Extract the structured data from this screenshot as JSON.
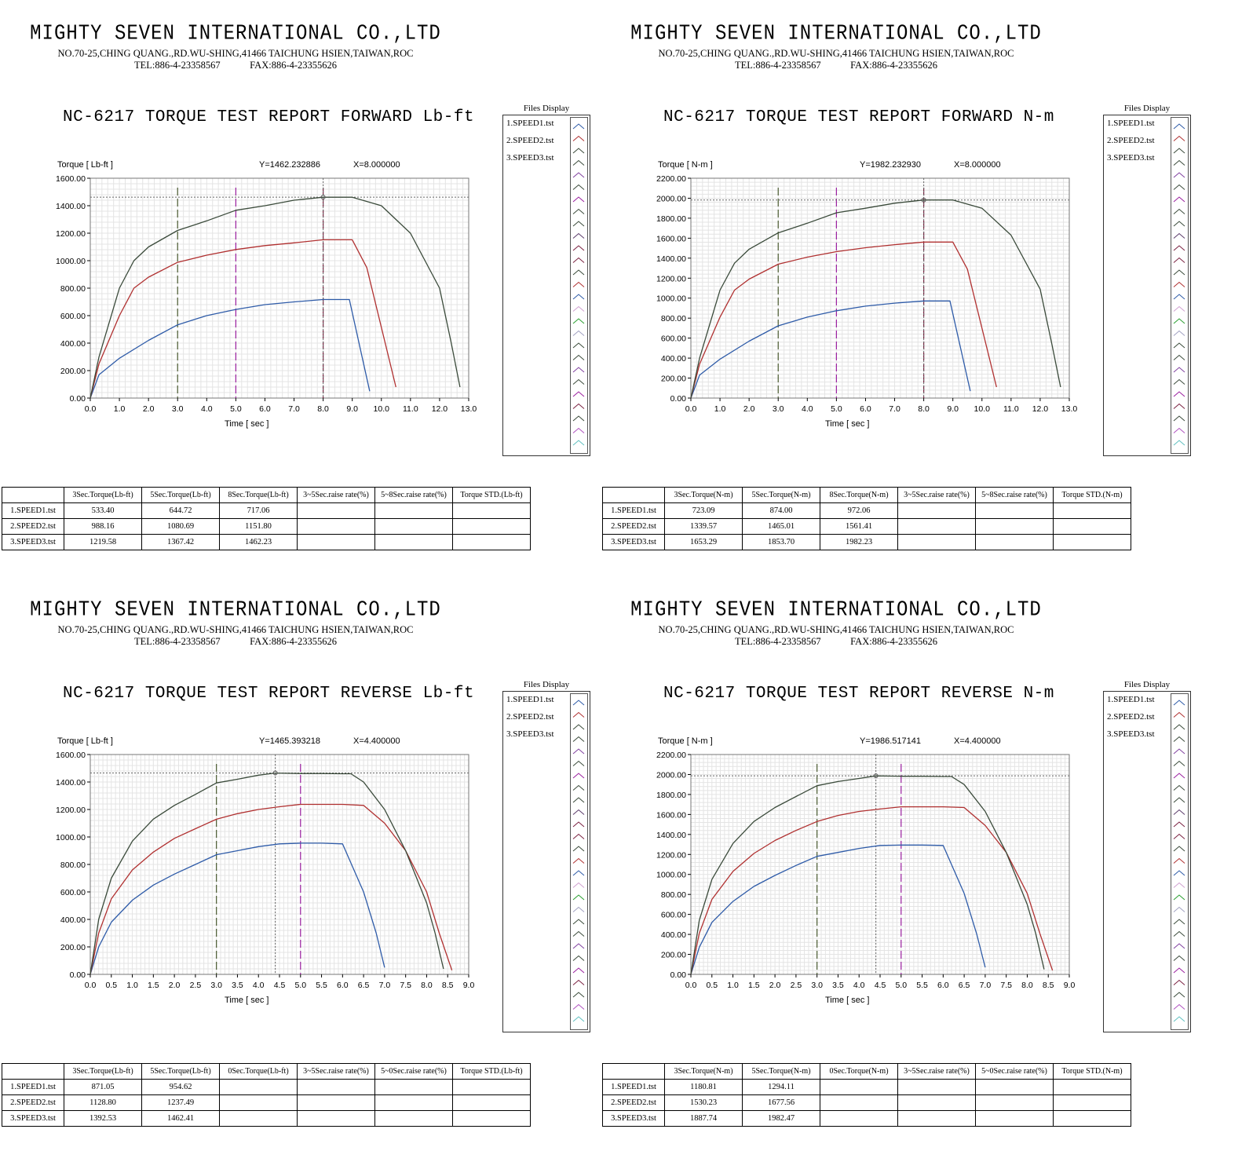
{
  "company": {
    "name": "MIGHTY SEVEN INTERNATIONAL CO.,LTD",
    "address": "NO.70-25,CHING QUANG.,RD.WU-SHING,41466 TAICHUNG HSIEN,TAIWAN,ROC",
    "tel": "TEL:886-4-23358567",
    "fax": "FAX:886-4-23355626"
  },
  "files_display": {
    "title": "Files Display",
    "items": [
      "1.SPEED1.tst",
      "2.SPEED2.tst",
      "3.SPEED3.tst"
    ]
  },
  "row_labels": [
    "1.SPEED1.tst",
    "2.SPEED2.tst",
    "3.SPEED3.tst"
  ],
  "colors": {
    "speed1": "#2e5ba8",
    "speed2": "#b03030",
    "speed3": "#3a4a3a",
    "marker3": "#4a5a30",
    "marker5": "#9b1fa0",
    "marker8": "#7a2040"
  },
  "reports": [
    {
      "title": "NC-6217 TORQUE TEST REPORT FORWARD Lb-ft",
      "table": {
        "headers": [
          "3Sec.Torque(Lb-ft)",
          "5Sec.Torque(Lb-ft)",
          "8Sec.Torque(Lb-ft)",
          "3~5Sec.raise rate(%)",
          "5~8Sec.raise rate(%)",
          "Torque STD.(Lb-ft)"
        ],
        "rows": [
          [
            "533.40",
            "644.72",
            "717.06",
            "",
            "",
            ""
          ],
          [
            "988.16",
            "1080.69",
            "1151.80",
            "",
            "",
            ""
          ],
          [
            "1219.58",
            "1367.42",
            "1462.23",
            "",
            "",
            ""
          ]
        ]
      },
      "chart_data": {
        "type": "line",
        "ylabel": "Torque [ Lb-ft ]",
        "xlabel": "Time [ sec ]",
        "cursor_text": {
          "y": "Y=1462.232886",
          "x": "X=8.000000"
        },
        "xlim": [
          0,
          13
        ],
        "ylim": [
          0,
          1600
        ],
        "xticks": [
          "0.0",
          "1.0",
          "2.0",
          "3.0",
          "4.0",
          "5.0",
          "6.0",
          "7.0",
          "8.0",
          "9.0",
          "10.0",
          "11.0",
          "12.0",
          "13.0"
        ],
        "yticks": [
          "0.00",
          "200.00",
          "400.00",
          "600.00",
          "800.00",
          "1000.00",
          "1200.00",
          "1400.00",
          "1600.00"
        ],
        "markers": [
          3,
          5,
          8
        ],
        "cursor": [
          8,
          1462.23
        ],
        "series": [
          {
            "name": "1.SPEED1.tst",
            "x": [
              0,
              0.3,
              1,
              2,
              3,
              4,
              5,
              6,
              7,
              8,
              8.9,
              9.6
            ],
            "y": [
              0,
              170,
              290,
              420,
              533,
              600,
              645,
              680,
              700,
              717,
              717,
              50
            ]
          },
          {
            "name": "2.SPEED2.tst",
            "x": [
              0,
              0.3,
              1,
              1.5,
              2,
              3,
              4,
              5,
              6,
              7,
              8,
              9,
              9.5,
              10.5
            ],
            "y": [
              0,
              250,
              600,
              800,
              880,
              988,
              1040,
              1081,
              1110,
              1130,
              1152,
              1152,
              950,
              80
            ]
          },
          {
            "name": "3.SPEED3.tst",
            "x": [
              0,
              0.3,
              1,
              1.5,
              2,
              3,
              4,
              5,
              6,
              7,
              8,
              9,
              10,
              11,
              12,
              12.4,
              12.7
            ],
            "y": [
              0,
              300,
              800,
              1000,
              1100,
              1220,
              1290,
              1367,
              1400,
              1440,
              1462,
              1462,
              1400,
              1200,
              800,
              400,
              80
            ]
          }
        ]
      }
    },
    {
      "title": "NC-6217 TORQUE TEST REPORT FORWARD N-m",
      "table": {
        "headers": [
          "3Sec.Torque(N-m)",
          "5Sec.Torque(N-m)",
          "8Sec.Torque(N-m)",
          "3~5Sec.raise rate(%)",
          "5~8Sec.raise rate(%)",
          "Torque STD.(N-m)"
        ],
        "rows": [
          [
            "723.09",
            "874.00",
            "972.06",
            "",
            "",
            ""
          ],
          [
            "1339.57",
            "1465.01",
            "1561.41",
            "",
            "",
            ""
          ],
          [
            "1653.29",
            "1853.70",
            "1982.23",
            "",
            "",
            ""
          ]
        ]
      },
      "chart_data": {
        "type": "line",
        "ylabel": "Torque [ N-m ]",
        "xlabel": "Time [ sec ]",
        "cursor_text": {
          "y": "Y=1982.232930",
          "x": "X=8.000000"
        },
        "xlim": [
          0,
          13
        ],
        "ylim": [
          0,
          2200
        ],
        "xticks": [
          "0.0",
          "1.0",
          "2.0",
          "3.0",
          "4.0",
          "5.0",
          "6.0",
          "7.0",
          "8.0",
          "9.0",
          "10.0",
          "11.0",
          "12.0",
          "13.0"
        ],
        "yticks": [
          "0.00",
          "200.00",
          "400.00",
          "600.00",
          "800.00",
          "1000.00",
          "1200.00",
          "1400.00",
          "1600.00",
          "1800.00",
          "2000.00",
          "2200.00"
        ],
        "markers": [
          3,
          5,
          8
        ],
        "cursor": [
          8,
          1982.23
        ],
        "series": [
          {
            "name": "1.SPEED1.tst",
            "x": [
              0,
              0.3,
              1,
              2,
              3,
              4,
              5,
              6,
              7,
              8,
              8.9,
              9.6
            ],
            "y": [
              0,
              230,
              390,
              570,
              723,
              810,
              874,
              920,
              950,
              972,
              972,
              70
            ]
          },
          {
            "name": "2.SPEED2.tst",
            "x": [
              0,
              0.3,
              1,
              1.5,
              2,
              3,
              4,
              5,
              6,
              7,
              8,
              9,
              9.5,
              10.5
            ],
            "y": [
              0,
              340,
              810,
              1080,
              1190,
              1340,
              1410,
              1465,
              1505,
              1535,
              1561,
              1561,
              1290,
              110
            ]
          },
          {
            "name": "3.SPEED3.tst",
            "x": [
              0,
              0.3,
              1,
              1.5,
              2,
              3,
              4,
              5,
              6,
              7,
              8,
              9,
              10,
              11,
              12,
              12.4,
              12.7
            ],
            "y": [
              0,
              400,
              1080,
              1350,
              1490,
              1653,
              1750,
              1854,
              1900,
              1950,
              1982,
              1982,
              1900,
              1630,
              1090,
              540,
              110
            ]
          }
        ]
      }
    },
    {
      "title": "NC-6217 TORQUE TEST REPORT REVERSE Lb-ft",
      "table": {
        "headers": [
          "3Sec.Torque(Lb-ft)",
          "5Sec.Torque(Lb-ft)",
          "0Sec.Torque(Lb-ft)",
          "3~5Sec.raise rate(%)",
          "5~0Sec.raise rate(%)",
          "Torque STD.(Lb-ft)"
        ],
        "rows": [
          [
            "871.05",
            "954.62",
            "",
            "",
            "",
            ""
          ],
          [
            "1128.80",
            "1237.49",
            "",
            "",
            "",
            ""
          ],
          [
            "1392.53",
            "1462.41",
            "",
            "",
            "",
            ""
          ]
        ]
      },
      "chart_data": {
        "type": "line",
        "ylabel": "Torque [ Lb-ft ]",
        "xlabel": "Time [ sec ]",
        "cursor_text": {
          "y": "Y=1465.393218",
          "x": "X=4.400000"
        },
        "xlim": [
          0,
          9
        ],
        "ylim": [
          0,
          1600
        ],
        "xticks": [
          "0.0",
          "0.5",
          "1.0",
          "1.5",
          "2.0",
          "2.5",
          "3.0",
          "3.5",
          "4.0",
          "4.5",
          "5.0",
          "5.5",
          "6.0",
          "6.5",
          "7.0",
          "7.5",
          "8.0",
          "8.5",
          "9.0"
        ],
        "yticks": [
          "0.00",
          "200.00",
          "400.00",
          "600.00",
          "800.00",
          "1000.00",
          "1200.00",
          "1400.00",
          "1600.00"
        ],
        "markers": [
          3,
          5
        ],
        "cursor": [
          4.4,
          1465.39
        ],
        "series": [
          {
            "name": "1.SPEED1.tst",
            "x": [
              0,
              0.2,
              0.5,
              1,
              1.5,
              2,
              2.5,
              3,
              3.5,
              4,
              4.5,
              5,
              5.5,
              6,
              6.5,
              6.8,
              7
            ],
            "y": [
              0,
              200,
              380,
              540,
              650,
              730,
              800,
              871,
              900,
              930,
              950,
              955,
              955,
              950,
              600,
              300,
              50
            ]
          },
          {
            "name": "2.SPEED2.tst",
            "x": [
              0,
              0.2,
              0.5,
              1,
              1.5,
              2,
              2.5,
              3,
              3.5,
              4,
              4.5,
              5,
              5.5,
              6,
              6.5,
              7,
              7.5,
              8,
              8.3,
              8.6
            ],
            "y": [
              0,
              300,
              550,
              760,
              890,
              990,
              1060,
              1129,
              1170,
              1200,
              1220,
              1237,
              1237,
              1237,
              1230,
              1100,
              900,
              600,
              300,
              30
            ]
          },
          {
            "name": "3.SPEED3.tst",
            "x": [
              0,
              0.2,
              0.5,
              1,
              1.5,
              2,
              2.5,
              3,
              3.5,
              4,
              4.4,
              5,
              5.5,
              6,
              6.2,
              6.5,
              7,
              7.5,
              8,
              8.2,
              8.4
            ],
            "y": [
              0,
              400,
              700,
              970,
              1130,
              1230,
              1310,
              1393,
              1420,
              1450,
              1465,
              1462,
              1462,
              1460,
              1460,
              1400,
              1200,
              900,
              520,
              300,
              40
            ]
          }
        ]
      }
    },
    {
      "title": "NC-6217 TORQUE TEST REPORT REVERSE N-m",
      "table": {
        "headers": [
          "3Sec.Torque(N-m)",
          "5Sec.Torque(N-m)",
          "0Sec.Torque(N-m)",
          "3~5Sec.raise rate(%)",
          "5~0Sec.raise rate(%)",
          "Torque STD.(N-m)"
        ],
        "rows": [
          [
            "1180.81",
            "1294.11",
            "",
            "",
            "",
            ""
          ],
          [
            "1530.23",
            "1677.56",
            "",
            "",
            "",
            ""
          ],
          [
            "1887.74",
            "1982.47",
            "",
            "",
            "",
            ""
          ]
        ]
      },
      "chart_data": {
        "type": "line",
        "ylabel": "Torque [ N-m ]",
        "xlabel": "Time [ sec ]",
        "cursor_text": {
          "y": "Y=1986.517141",
          "x": "X=4.400000"
        },
        "xlim": [
          0,
          9
        ],
        "ylim": [
          0,
          2200
        ],
        "xticks": [
          "0.0",
          "0.5",
          "1.0",
          "1.5",
          "2.0",
          "2.5",
          "3.0",
          "3.5",
          "4.0",
          "4.5",
          "5.0",
          "5.5",
          "6.0",
          "6.5",
          "7.0",
          "7.5",
          "8.0",
          "8.5",
          "9.0"
        ],
        "yticks": [
          "0.00",
          "200.00",
          "400.00",
          "600.00",
          "800.00",
          "1000.00",
          "1200.00",
          "1400.00",
          "1600.00",
          "1800.00",
          "2000.00",
          "2200.00"
        ],
        "markers": [
          3,
          5
        ],
        "cursor": [
          4.4,
          1986.52
        ],
        "series": [
          {
            "name": "1.SPEED1.tst",
            "x": [
              0,
              0.2,
              0.5,
              1,
              1.5,
              2,
              2.5,
              3,
              3.5,
              4,
              4.5,
              5,
              5.5,
              6,
              6.5,
              6.8,
              7
            ],
            "y": [
              0,
              270,
              520,
              730,
              880,
              990,
              1090,
              1181,
              1220,
              1260,
              1290,
              1294,
              1294,
              1290,
              810,
              400,
              70
            ]
          },
          {
            "name": "2.SPEED2.tst",
            "x": [
              0,
              0.2,
              0.5,
              1,
              1.5,
              2,
              2.5,
              3,
              3.5,
              4,
              4.5,
              5,
              5.5,
              6,
              6.5,
              7,
              7.5,
              8,
              8.3,
              8.6
            ],
            "y": [
              0,
              410,
              750,
              1030,
              1210,
              1340,
              1440,
              1530,
              1590,
              1630,
              1655,
              1677,
              1677,
              1677,
              1670,
              1490,
              1220,
              810,
              410,
              40
            ]
          },
          {
            "name": "3.SPEED3.tst",
            "x": [
              0,
              0.2,
              0.5,
              1,
              1.5,
              2,
              2.5,
              3,
              3.5,
              4,
              4.4,
              5,
              5.5,
              6,
              6.2,
              6.5,
              7,
              7.5,
              8,
              8.2,
              8.4
            ],
            "y": [
              0,
              540,
              950,
              1310,
              1530,
              1670,
              1780,
              1888,
              1930,
              1960,
              1986,
              1982,
              1982,
              1980,
              1980,
              1900,
              1630,
              1220,
              700,
              410,
              50
            ]
          }
        ]
      }
    }
  ]
}
